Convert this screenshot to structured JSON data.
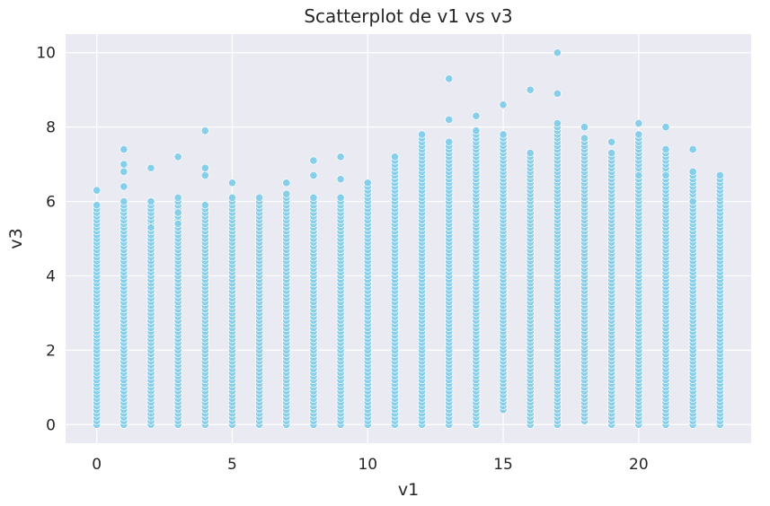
{
  "chart_data": {
    "type": "scatter",
    "title": "Scatterplot de v1 vs v3",
    "xlabel": "v1",
    "ylabel": "v3",
    "xlim": [
      -1.15,
      24.15
    ],
    "ylim": [
      -0.5,
      10.5
    ],
    "x_ticks": [
      "0",
      "5",
      "10",
      "15",
      "20"
    ],
    "y_ticks": [
      "0",
      "2",
      "4",
      "6",
      "8",
      "10"
    ],
    "grid": true,
    "point_color": "#87ceeb",
    "plot_background": "#eaeaf2",
    "columns": [
      {
        "x": 0,
        "max": 6.3,
        "dense_max": 5.9,
        "dense_min": 0.0,
        "extras": []
      },
      {
        "x": 1,
        "max": 7.4,
        "dense_max": 6.0,
        "dense_min": 0.0,
        "extras": [
          7.0,
          6.8,
          6.4
        ]
      },
      {
        "x": 2,
        "max": 6.9,
        "dense_max": 6.0,
        "dense_min": 0.0,
        "extras": [
          5.3
        ]
      },
      {
        "x": 3,
        "max": 7.2,
        "dense_max": 6.1,
        "dense_min": 0.0,
        "extras": [
          5.7,
          5.4
        ]
      },
      {
        "x": 4,
        "max": 7.9,
        "dense_max": 5.9,
        "dense_min": 0.0,
        "extras": [
          6.9,
          6.7
        ]
      },
      {
        "x": 5,
        "max": 6.5,
        "dense_max": 6.1,
        "dense_min": 0.0,
        "extras": []
      },
      {
        "x": 6,
        "max": 6.1,
        "dense_max": 6.1,
        "dense_min": 0.0,
        "extras": []
      },
      {
        "x": 7,
        "max": 6.5,
        "dense_max": 6.2,
        "dense_min": 0.0,
        "extras": []
      },
      {
        "x": 8,
        "max": 7.1,
        "dense_max": 6.1,
        "dense_min": 0.0,
        "extras": [
          6.7
        ]
      },
      {
        "x": 9,
        "max": 7.2,
        "dense_max": 6.1,
        "dense_min": 0.0,
        "extras": [
          6.6
        ]
      },
      {
        "x": 10,
        "max": 6.5,
        "dense_max": 6.5,
        "dense_min": 0.0,
        "extras": []
      },
      {
        "x": 11,
        "max": 7.2,
        "dense_max": 7.2,
        "dense_min": 0.0,
        "extras": []
      },
      {
        "x": 12,
        "max": 7.8,
        "dense_max": 7.8,
        "dense_min": 0.0,
        "extras": []
      },
      {
        "x": 13,
        "max": 9.3,
        "dense_max": 7.6,
        "dense_min": 0.0,
        "extras": [
          8.2
        ]
      },
      {
        "x": 14,
        "max": 8.3,
        "dense_max": 7.9,
        "dense_min": 0.0,
        "extras": []
      },
      {
        "x": 15,
        "max": 8.6,
        "dense_max": 7.8,
        "dense_min": 0.4,
        "extras": []
      },
      {
        "x": 16,
        "max": 9.0,
        "dense_max": 7.3,
        "dense_min": 0.0,
        "extras": []
      },
      {
        "x": 17,
        "max": 10.0,
        "dense_max": 8.1,
        "dense_min": 0.0,
        "extras": [
          8.9
        ]
      },
      {
        "x": 18,
        "max": 8.0,
        "dense_max": 7.7,
        "dense_min": 0.1,
        "extras": []
      },
      {
        "x": 19,
        "max": 7.6,
        "dense_max": 7.3,
        "dense_min": 0.0,
        "extras": []
      },
      {
        "x": 20,
        "max": 8.1,
        "dense_max": 7.8,
        "dense_min": 0.0,
        "extras": [
          6.7
        ]
      },
      {
        "x": 21,
        "max": 8.0,
        "dense_max": 7.4,
        "dense_min": 0.0,
        "extras": [
          6.7
        ]
      },
      {
        "x": 22,
        "max": 7.4,
        "dense_max": 6.8,
        "dense_min": 0.0,
        "extras": [
          6.0
        ]
      },
      {
        "x": 23,
        "max": 6.7,
        "dense_max": 6.7,
        "dense_min": 0.0,
        "extras": []
      }
    ]
  }
}
